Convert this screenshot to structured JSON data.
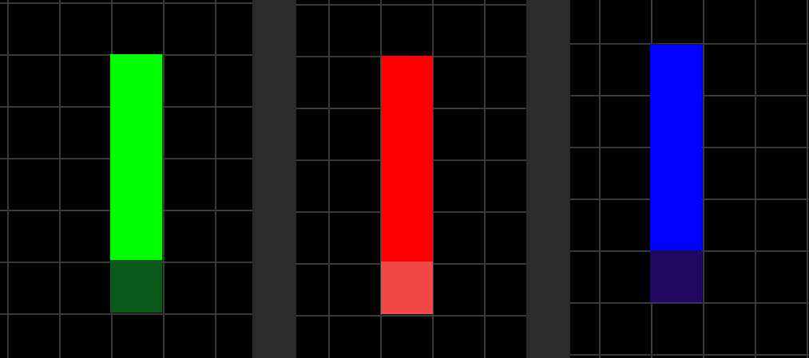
{
  "panels": [
    {
      "id": "green",
      "main_color": "#00ff00",
      "shade_color": "#0b5a1c"
    },
    {
      "id": "red",
      "main_color": "#ff0000",
      "shade_color": "#f24848"
    },
    {
      "id": "blue",
      "main_color": "#0000ff",
      "shade_color": "#200860"
    }
  ],
  "colors": {
    "background": "#000000",
    "grid_line": "#3a3a3a",
    "divider": "#2b2b2b"
  }
}
